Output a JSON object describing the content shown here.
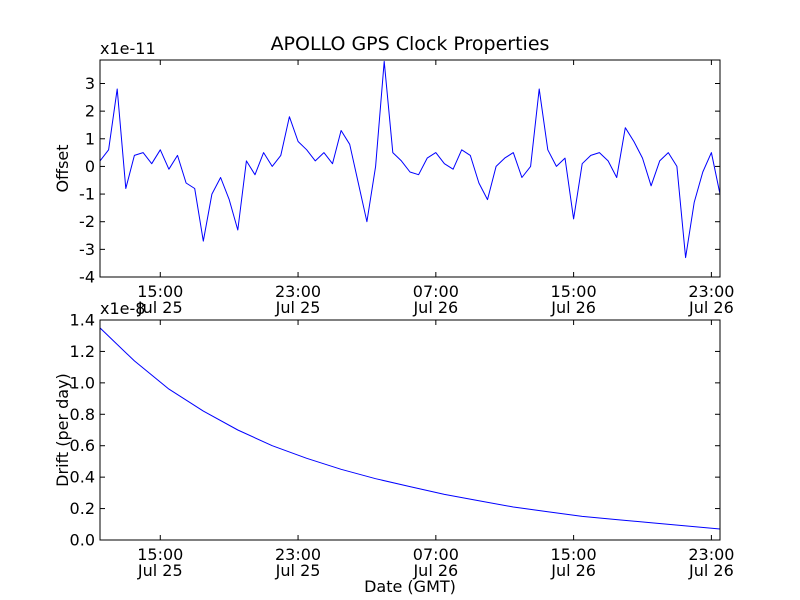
{
  "chart_data": [
    {
      "type": "line",
      "title": "APOLLO GPS Clock Properties",
      "ylabel": "Offset",
      "xlabel": "",
      "y_scale_label": "x1e-11",
      "ylim": [
        -4,
        3.85
      ],
      "yticks": [
        -4,
        -3,
        -2,
        -1,
        0,
        1,
        2,
        3
      ],
      "xlim": [
        "Jul 25 11:30",
        "Jul 26 23:30"
      ],
      "xticks": [
        {
          "time": "Jul 25 15:00",
          "label1": "15:00",
          "label2": "Jul 25"
        },
        {
          "time": "Jul 25 23:00",
          "label1": "23:00",
          "label2": "Jul 25"
        },
        {
          "time": "Jul 26 07:00",
          "label1": "07:00",
          "label2": "Jul 26"
        },
        {
          "time": "Jul 26 15:00",
          "label1": "15:00",
          "label2": "Jul 26"
        },
        {
          "time": "Jul 26 23:00",
          "label1": "23:00",
          "label2": "Jul 26"
        }
      ],
      "color": "#0000ff",
      "series": [
        {
          "x": [
            "Jul 25 11:30",
            "Jul 25 12:00",
            "Jul 25 12:30",
            "Jul 25 13:00",
            "Jul 25 13:30",
            "Jul 25 14:00",
            "Jul 25 14:30",
            "Jul 25 15:00",
            "Jul 25 15:30",
            "Jul 25 16:00",
            "Jul 25 16:30",
            "Jul 25 17:00",
            "Jul 25 17:30",
            "Jul 25 18:00",
            "Jul 25 18:30",
            "Jul 25 19:00",
            "Jul 25 19:30",
            "Jul 25 20:00",
            "Jul 25 20:30",
            "Jul 25 21:00",
            "Jul 25 21:30",
            "Jul 25 22:00",
            "Jul 25 22:30",
            "Jul 25 23:00",
            "Jul 25 23:30",
            "Jul 26 00:00",
            "Jul 26 00:30",
            "Jul 26 01:00",
            "Jul 26 01:30",
            "Jul 26 02:00",
            "Jul 26 02:30",
            "Jul 26 03:00",
            "Jul 26 03:30",
            "Jul 26 04:00",
            "Jul 26 04:30",
            "Jul 26 05:00",
            "Jul 26 05:30",
            "Jul 26 06:00",
            "Jul 26 06:30",
            "Jul 26 07:00",
            "Jul 26 07:30",
            "Jul 26 08:00",
            "Jul 26 08:30",
            "Jul 26 09:00",
            "Jul 26 09:30",
            "Jul 26 10:00",
            "Jul 26 10:30",
            "Jul 26 11:00",
            "Jul 26 11:30",
            "Jul 26 12:00",
            "Jul 26 12:30",
            "Jul 26 13:00",
            "Jul 26 13:30",
            "Jul 26 14:00",
            "Jul 26 14:30",
            "Jul 26 15:00",
            "Jul 26 15:30",
            "Jul 26 16:00",
            "Jul 26 16:30",
            "Jul 26 17:00",
            "Jul 26 17:30",
            "Jul 26 18:00",
            "Jul 26 18:30",
            "Jul 26 19:00",
            "Jul 26 19:30",
            "Jul 26 20:00",
            "Jul 26 20:30",
            "Jul 26 21:00",
            "Jul 26 21:30",
            "Jul 26 22:00",
            "Jul 26 22:30",
            "Jul 26 23:00",
            "Jul 26 23:30"
          ],
          "values": [
            0.2,
            0.6,
            2.8,
            -0.8,
            0.4,
            0.5,
            0.1,
            0.6,
            -0.1,
            0.4,
            -0.6,
            -0.8,
            -2.7,
            -1.0,
            -0.4,
            -1.2,
            -2.3,
            0.2,
            -0.3,
            0.5,
            0.0,
            0.4,
            1.8,
            0.9,
            0.6,
            0.2,
            0.5,
            0.1,
            1.3,
            0.8,
            -0.6,
            -2.0,
            0.0,
            3.8,
            0.5,
            0.2,
            -0.2,
            -0.3,
            0.3,
            0.5,
            0.1,
            -0.1,
            0.6,
            0.4,
            -0.6,
            -1.2,
            0.0,
            0.3,
            0.5,
            -0.4,
            0.0,
            2.8,
            0.6,
            0.0,
            0.3,
            -1.9,
            0.1,
            0.4,
            0.5,
            0.2,
            -0.4,
            1.4,
            0.9,
            0.3,
            -0.7,
            0.2,
            0.5,
            0.0,
            -3.3,
            -1.3,
            -0.2,
            0.5,
            -1.0
          ]
        }
      ]
    },
    {
      "type": "line",
      "title": "",
      "ylabel": "Drift (per day)",
      "xlabel": "Date (GMT)",
      "y_scale_label": "x1e-8",
      "ylim": [
        0.0,
        1.4
      ],
      "yticks": [
        0.0,
        0.2,
        0.4,
        0.6,
        0.8,
        1.0,
        1.2,
        1.4
      ],
      "xlim": [
        "Jul 25 11:30",
        "Jul 26 23:30"
      ],
      "xticks": [
        {
          "time": "Jul 25 15:00",
          "label1": "15:00",
          "label2": "Jul 25"
        },
        {
          "time": "Jul 25 23:00",
          "label1": "23:00",
          "label2": "Jul 25"
        },
        {
          "time": "Jul 26 07:00",
          "label1": "07:00",
          "label2": "Jul 26"
        },
        {
          "time": "Jul 26 15:00",
          "label1": "15:00",
          "label2": "Jul 26"
        },
        {
          "time": "Jul 26 23:00",
          "label1": "23:00",
          "label2": "Jul 26"
        }
      ],
      "color": "#0000ff",
      "series": [
        {
          "x": [
            "Jul 25 11:30",
            "Jul 25 13:30",
            "Jul 25 15:30",
            "Jul 25 17:30",
            "Jul 25 19:30",
            "Jul 25 21:30",
            "Jul 25 23:30",
            "Jul 26 01:30",
            "Jul 26 03:30",
            "Jul 26 05:30",
            "Jul 26 07:30",
            "Jul 26 09:30",
            "Jul 26 11:30",
            "Jul 26 13:30",
            "Jul 26 15:30",
            "Jul 26 17:30",
            "Jul 26 19:30",
            "Jul 26 21:30",
            "Jul 26 23:30"
          ],
          "values": [
            1.35,
            1.14,
            0.96,
            0.82,
            0.7,
            0.6,
            0.52,
            0.45,
            0.39,
            0.34,
            0.29,
            0.25,
            0.21,
            0.18,
            0.15,
            0.13,
            0.11,
            0.09,
            0.07
          ]
        }
      ]
    }
  ]
}
